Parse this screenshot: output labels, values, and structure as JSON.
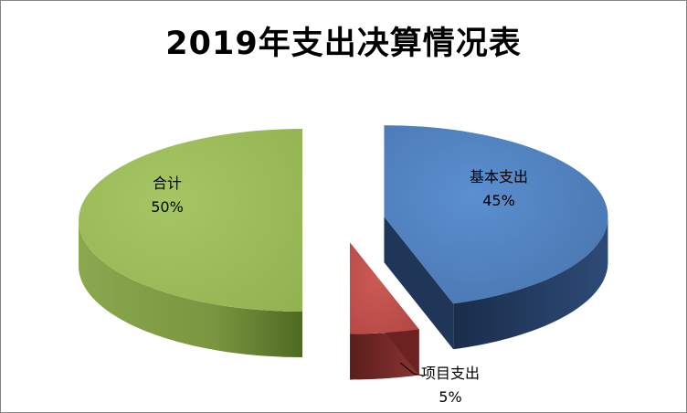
{
  "chart_data": {
    "type": "pie",
    "title": "2019年支出决算情况表",
    "slices": [
      {
        "name": "基本支出",
        "value": 45,
        "label": "45%",
        "color": "#4f81bd",
        "side_color": "#1f3658"
      },
      {
        "name": "项目支出",
        "value": 5,
        "label": "5%",
        "color": "#c0504d",
        "side_color": "#6b2321"
      },
      {
        "name": "合计",
        "value": 50,
        "label": "50%",
        "color": "#9bbb59",
        "side_color": "#5d7a2a"
      }
    ],
    "legend": "none",
    "exploded": true,
    "three_d": true
  }
}
